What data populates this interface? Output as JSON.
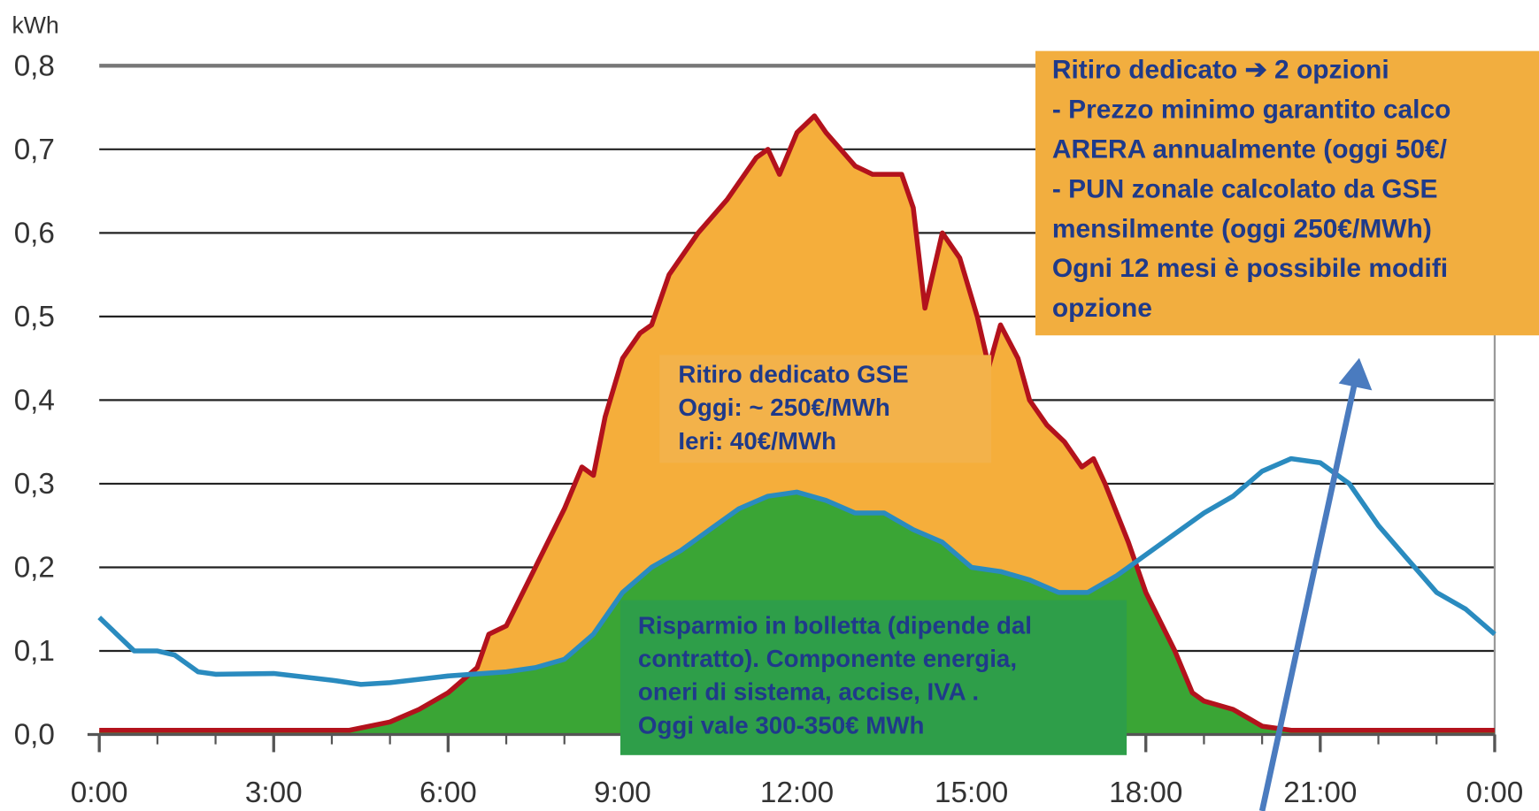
{
  "chart_data": {
    "type": "area",
    "y_unit": "kWh",
    "xlim": [
      0,
      24
    ],
    "ylim": [
      0,
      0.8
    ],
    "xticks": [
      {
        "value": 0,
        "label": "0:00"
      },
      {
        "value": 3,
        "label": "3:00"
      },
      {
        "value": 6,
        "label": "6:00"
      },
      {
        "value": 9,
        "label": "9:00"
      },
      {
        "value": 12,
        "label": "12:00"
      },
      {
        "value": 15,
        "label": "15:00"
      },
      {
        "value": 18,
        "label": "18:00"
      },
      {
        "value": 21,
        "label": "21:00"
      },
      {
        "value": 24,
        "label": "0:00"
      }
    ],
    "yticks": [
      {
        "value": 0,
        "label": "0,0"
      },
      {
        "value": 0.1,
        "label": "0,1"
      },
      {
        "value": 0.2,
        "label": "0,2"
      },
      {
        "value": 0.3,
        "label": "0,3"
      },
      {
        "value": 0.4,
        "label": "0,4"
      },
      {
        "value": 0.5,
        "label": "0,5"
      },
      {
        "value": 0.6,
        "label": "0,6"
      },
      {
        "value": 0.7,
        "label": "0,7"
      },
      {
        "value": 0.8,
        "label": "0,8"
      }
    ],
    "grid": true,
    "series": [
      {
        "color": "#b3121c",
        "fill": "#f5ae3b",
        "x": [
          0,
          4.3,
          5,
          5.5,
          6,
          6.5,
          6.7,
          7,
          7.5,
          8,
          8.3,
          8.5,
          8.7,
          9,
          9.3,
          9.5,
          9.8,
          10.3,
          10.8,
          11.3,
          11.5,
          11.7,
          12,
          12.3,
          12.5,
          13,
          13.3,
          13.8,
          14,
          14.2,
          14.5,
          14.8,
          15.1,
          15.3,
          15.5,
          15.8,
          16,
          16.3,
          16.6,
          16.9,
          17.1,
          17.3,
          17.7,
          18,
          18.5,
          18.8,
          19,
          19.5,
          20,
          20.5,
          24
        ],
        "values": [
          0.005,
          0.005,
          0.015,
          0.03,
          0.05,
          0.08,
          0.12,
          0.13,
          0.2,
          0.27,
          0.32,
          0.31,
          0.38,
          0.45,
          0.48,
          0.49,
          0.55,
          0.6,
          0.64,
          0.69,
          0.7,
          0.67,
          0.72,
          0.74,
          0.72,
          0.68,
          0.67,
          0.67,
          0.63,
          0.51,
          0.6,
          0.57,
          0.5,
          0.44,
          0.49,
          0.45,
          0.4,
          0.37,
          0.35,
          0.32,
          0.33,
          0.3,
          0.23,
          0.17,
          0.1,
          0.05,
          0.04,
          0.03,
          0.01,
          0.005,
          0.005
        ]
      },
      {
        "color": "#2a8bbf",
        "fill": "#3aa535",
        "x": [
          0,
          0.3,
          0.6,
          1,
          1.3,
          1.7,
          2,
          3,
          4,
          4.5,
          5,
          6,
          7,
          7.5,
          8,
          8.5,
          9,
          9.5,
          10,
          10.5,
          11,
          11.5,
          12,
          12.5,
          13,
          13.5,
          14,
          14.5,
          15,
          15.5,
          16,
          16.5,
          17,
          17.5,
          18,
          18.5,
          19,
          19.5,
          20,
          20.5,
          21,
          21.5,
          22,
          22.5,
          23,
          23.5,
          24
        ],
        "values": [
          0.14,
          0.12,
          0.1,
          0.1,
          0.095,
          0.075,
          0.072,
          0.073,
          0.065,
          0.06,
          0.062,
          0.07,
          0.075,
          0.08,
          0.09,
          0.12,
          0.17,
          0.2,
          0.22,
          0.245,
          0.27,
          0.285,
          0.29,
          0.28,
          0.265,
          0.265,
          0.245,
          0.23,
          0.2,
          0.195,
          0.185,
          0.17,
          0.17,
          0.19,
          0.215,
          0.24,
          0.265,
          0.285,
          0.315,
          0.33,
          0.325,
          0.3,
          0.25,
          0.21,
          0.17,
          0.15,
          0.12
        ]
      }
    ],
    "annotations": [
      {
        "lines": [
          "Ritiro dedicato ➔ 2 opzioni",
          "- Prezzo minimo garantito calco",
          "ARERA annualmente (oggi 50€/",
          "- PUN zonale calcolato da GSE",
          "mensilmente (oggi 250€/MWh)",
          "Ogni 12 mesi è possibile modifi",
          "opzione"
        ]
      },
      {
        "lines": [
          "Ritiro dedicato GSE",
          "Oggi: ~ 250€/MWh",
          "Ieri: 40€/MWh"
        ]
      },
      {
        "lines": [
          "Risparmio in bolletta (dipende dal",
          "contratto). Componente energia,",
          "oneri di sistema, accise, IVA .",
          "Oggi vale 300-350€ MWh"
        ]
      }
    ]
  }
}
